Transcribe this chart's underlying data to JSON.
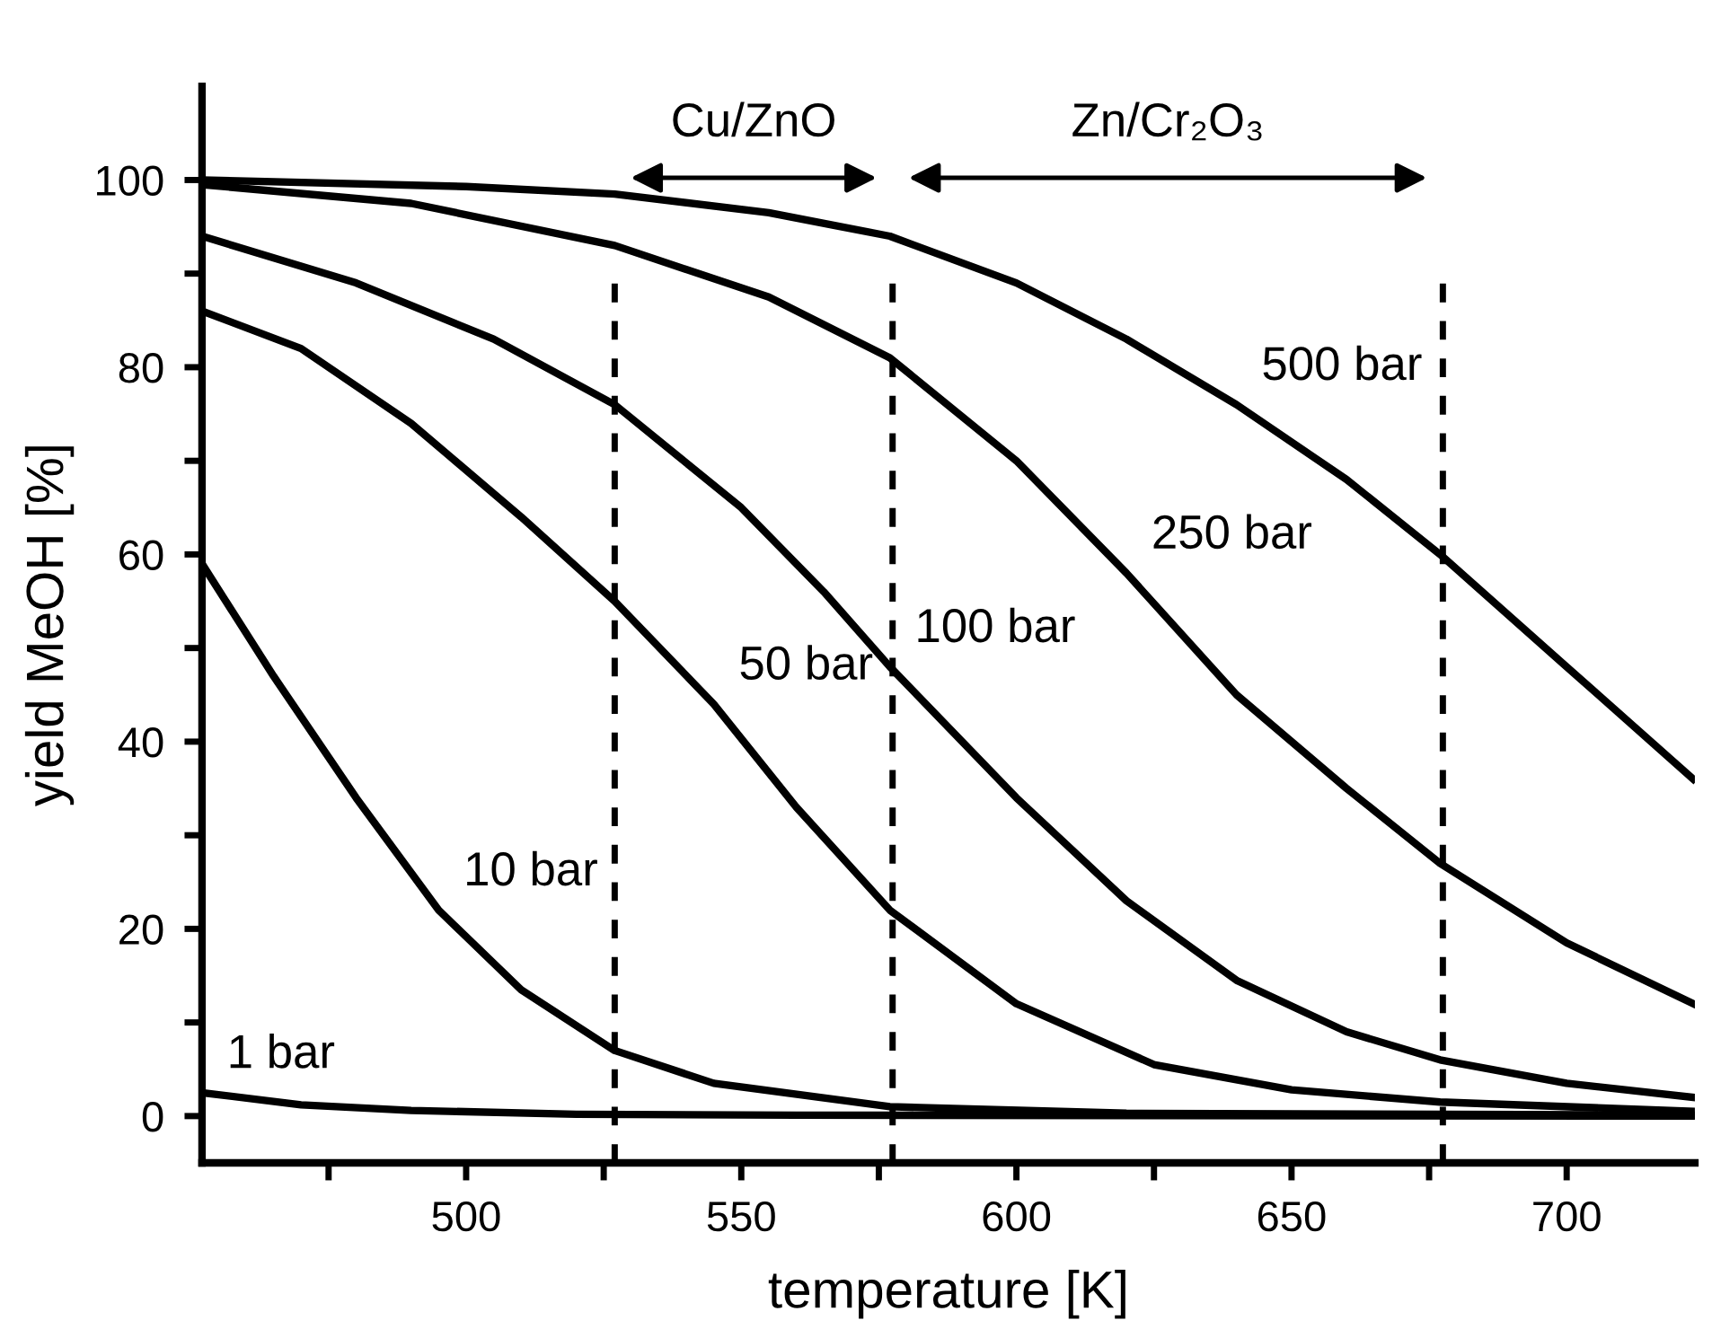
{
  "chart_data": {
    "type": "line",
    "xlabel": "temperature [K]",
    "ylabel": "yield MeOH [%]",
    "xlim": [
      452,
      723.3
    ],
    "ylim": [
      -5,
      110
    ],
    "xticks": [
      {
        "value": 475,
        "label": null
      },
      500,
      {
        "value": 525,
        "label": null
      },
      550,
      {
        "value": 575,
        "label": null
      },
      600,
      {
        "value": 625,
        "label": null
      },
      650,
      {
        "value": 675,
        "label": null
      },
      700
    ],
    "yticks": [
      0,
      {
        "value": 10,
        "label": null
      },
      20,
      {
        "value": 30,
        "label": null
      },
      40,
      {
        "value": 50,
        "label": null
      },
      60,
      {
        "value": 70,
        "label": null
      },
      80,
      {
        "value": 90,
        "label": null
      },
      100
    ],
    "grid": false,
    "legend": false,
    "marker": "none",
    "line_style": "solid",
    "series": [
      {
        "color": "#000000",
        "x": [
          452,
          470,
          490,
          520,
          560,
          723
        ],
        "values": [
          2.5,
          1.2,
          0.6,
          0.2,
          0.1,
          0
        ]
      },
      {
        "color": "#000000",
        "x": [
          452,
          465,
          480,
          495,
          510,
          527,
          545,
          577,
          620,
          723
        ],
        "values": [
          59,
          47,
          34,
          22,
          13.5,
          7,
          3.5,
          1,
          0.3,
          0.1
        ]
      },
      {
        "color": "#000000",
        "x": [
          452,
          470,
          490,
          510,
          527,
          545,
          560,
          577,
          600,
          625,
          650,
          677,
          723
        ],
        "values": [
          86,
          82,
          74,
          64,
          55,
          44,
          33,
          22,
          12,
          5.5,
          2.8,
          1.5,
          0.5
        ]
      },
      {
        "color": "#000000",
        "x": [
          452,
          480,
          505,
          527,
          550,
          565,
          577,
          600,
          620,
          640,
          660,
          677,
          700,
          723
        ],
        "values": [
          94,
          89,
          83,
          76,
          65,
          56,
          48,
          34,
          23,
          14.5,
          9,
          6,
          3.5,
          2
        ]
      },
      {
        "color": "#000000",
        "x": [
          452,
          490,
          527,
          555,
          577,
          600,
          620,
          640,
          660,
          677,
          700,
          723
        ],
        "values": [
          99.5,
          97.5,
          93,
          87.5,
          81,
          70,
          58,
          45,
          35,
          27,
          18.5,
          12
        ]
      },
      {
        "color": "#000000",
        "x": [
          452,
          500,
          527,
          555,
          577,
          600,
          620,
          640,
          660,
          677,
          700,
          723
        ],
        "values": [
          100,
          99.3,
          98.5,
          96.5,
          94,
          89,
          83,
          76,
          68,
          60,
          48,
          36
        ]
      }
    ],
    "ref_lines": [
      {
        "axis": "x",
        "value": 527,
        "color": "#000000",
        "line_style": "dashed"
      },
      {
        "axis": "x",
        "value": 577.5,
        "color": "#000000",
        "line_style": "dashed"
      },
      {
        "axis": "x",
        "value": 677.5,
        "color": "#000000",
        "line_style": "dashed"
      }
    ],
    "annotations": [
      "Cu/ZnO",
      "Zn/Cr₂O₃",
      {
        "text": "1 bar",
        "x": 452,
        "y": 2.5
      },
      {
        "text": "10 bar",
        "x": 495,
        "y": 22
      },
      {
        "text": "50 bar",
        "x": 545,
        "y": 44
      },
      {
        "text": "100 bar",
        "x": 577,
        "y": 48
      },
      {
        "text": "250 bar",
        "x": 620,
        "y": 58
      },
      {
        "text": "500 bar",
        "x": 640,
        "y": 76
      }
    ]
  }
}
